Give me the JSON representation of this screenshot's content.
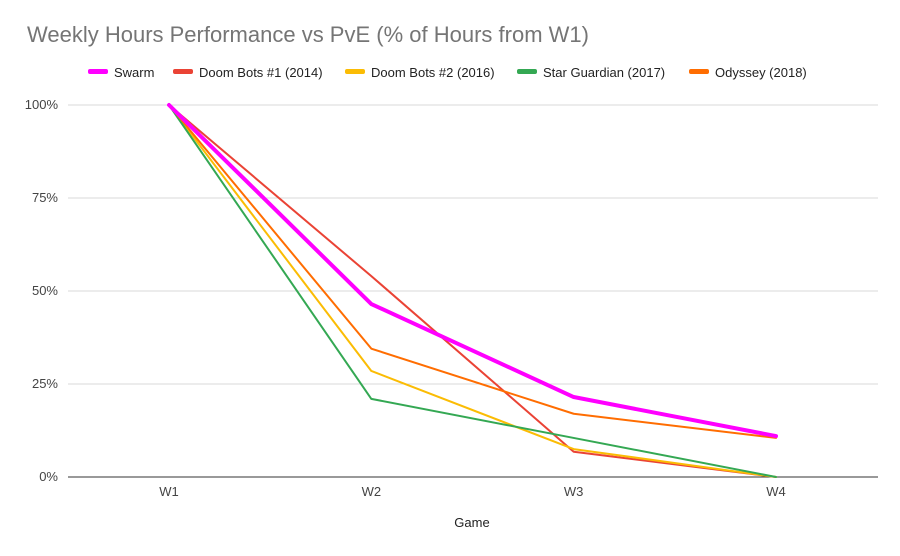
{
  "chart_data": {
    "type": "line",
    "title": "Weekly Hours Performance vs PvE (% of Hours from W1)",
    "xlabel": "Game",
    "ylabel": "",
    "categories": [
      "W1",
      "W2",
      "W3",
      "W4"
    ],
    "ylim": [
      0,
      100
    ],
    "yticks": [
      "0%",
      "25%",
      "50%",
      "75%",
      "100%"
    ],
    "yticks_values": [
      0,
      25,
      50,
      75,
      100
    ],
    "grid": true,
    "legend_position": "top",
    "series": [
      {
        "name": "Swarm",
        "color": "#ff00ff",
        "emphasis": true,
        "values": [
          100,
          46.5,
          21.5,
          11
        ]
      },
      {
        "name": "Doom Bots #1 (2014)",
        "color": "#ea4335",
        "emphasis": false,
        "values": [
          100,
          54,
          6.8,
          0
        ]
      },
      {
        "name": "Doom Bots #2 (2016)",
        "color": "#fbbc04",
        "emphasis": false,
        "values": [
          100,
          28.5,
          7.5,
          0
        ]
      },
      {
        "name": "Star Guardian (2017)",
        "color": "#34a853",
        "emphasis": false,
        "values": [
          100,
          21,
          10.5,
          0
        ]
      },
      {
        "name": "Odyssey (2018)",
        "color": "#ff6d01",
        "emphasis": false,
        "values": [
          100,
          34.5,
          17,
          10.5
        ]
      }
    ]
  }
}
